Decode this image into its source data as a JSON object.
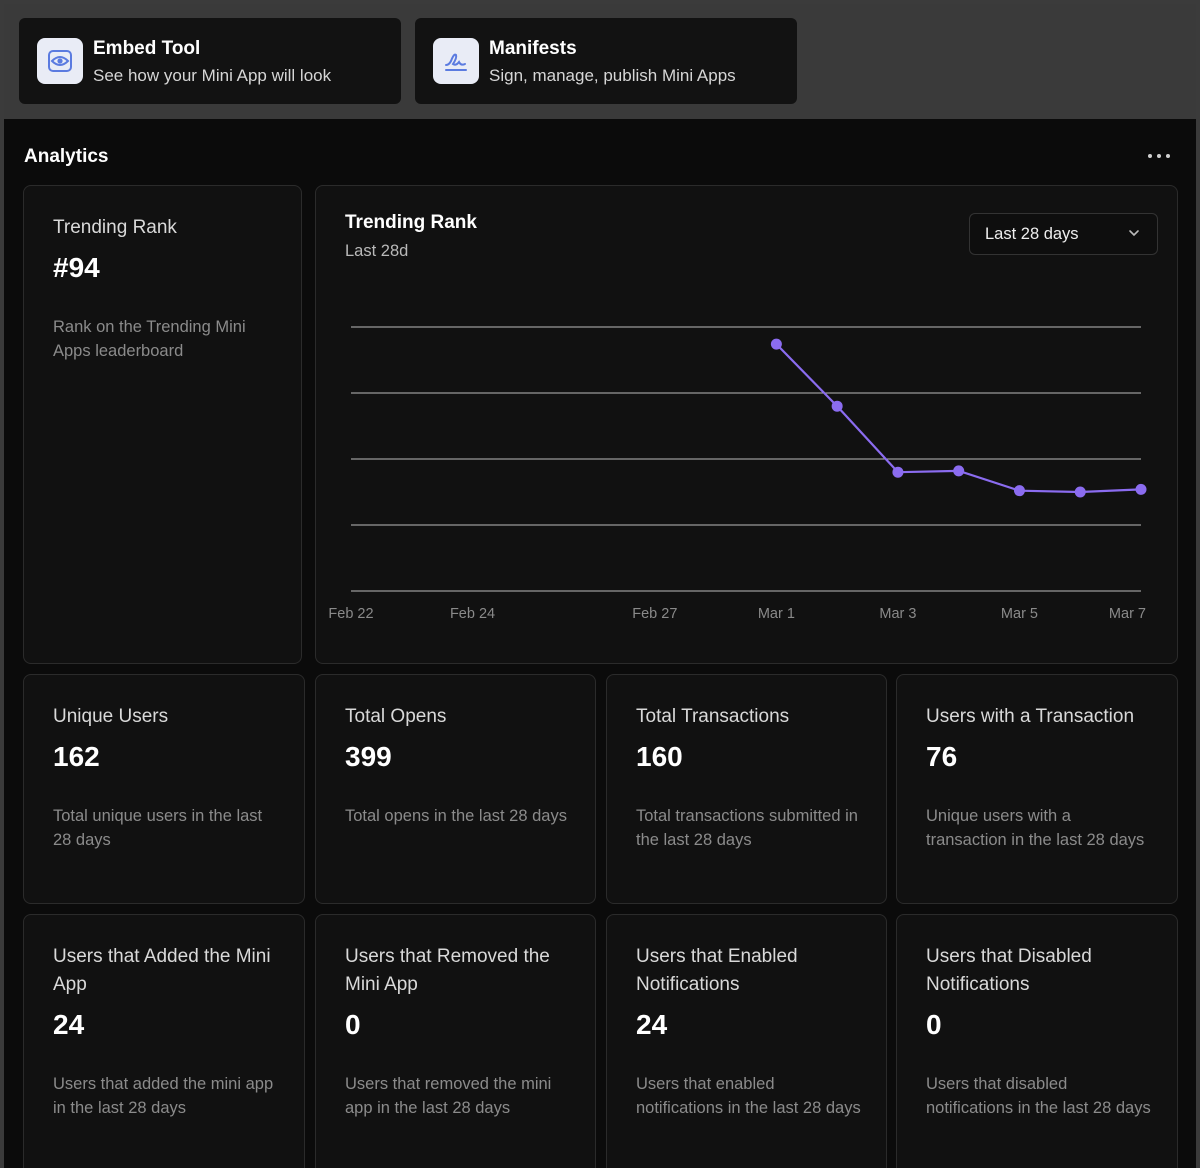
{
  "tools": [
    {
      "title": "Embed Tool",
      "subtitle": "See how your Mini App will look",
      "icon": "eye-icon"
    },
    {
      "title": "Manifests",
      "subtitle": "Sign, manage, publish Mini Apps",
      "icon": "signature-icon"
    }
  ],
  "analytics": {
    "title": "Analytics",
    "rank_card": {
      "label": "Trending Rank",
      "value": "#94",
      "desc": "Rank on the Trending Mini Apps leaderboard"
    },
    "chart_card": {
      "title": "Trending Rank",
      "subtitle": "Last 28d",
      "range_select": "Last 28 days"
    },
    "metrics_row1": [
      {
        "label": "Unique Users",
        "value": "162",
        "desc": "Total unique users in the last 28 days"
      },
      {
        "label": "Total Opens",
        "value": "399",
        "desc": "Total opens in the last 28 days"
      },
      {
        "label": "Total Transactions",
        "value": "160",
        "desc": "Total transactions submitted in the last 28 days"
      },
      {
        "label": "Users with a Transaction",
        "value": "76",
        "desc": "Unique users with a transaction in the last 28 days"
      }
    ],
    "metrics_row2": [
      {
        "label": "Users that Added the Mini App",
        "value": "24",
        "desc": "Users that added the mini app in the last 28 days"
      },
      {
        "label": "Users that Removed the Mini App",
        "value": "0",
        "desc": "Users that removed the mini app in the last 28 days"
      },
      {
        "label": "Users that Enabled Notifications",
        "value": "24",
        "desc": "Users that enabled notifications in the last 28 days"
      },
      {
        "label": "Users that Disabled Notifications",
        "value": "0",
        "desc": "Users that disabled notifications in the last 28 days"
      }
    ]
  },
  "colors": {
    "accent": "#8b6cf0",
    "grid": "#d9d9d9"
  },
  "chart_data": {
    "type": "line",
    "title": "Trending Rank",
    "subtitle": "Last 28d",
    "x_ticks": [
      "Feb 22",
      "Feb 24",
      "Feb 27",
      "Mar 1",
      "Mar 3",
      "Mar 5",
      "Mar 7"
    ],
    "x_tick_days": [
      0,
      2,
      5,
      7,
      9,
      11,
      13
    ],
    "x_range": [
      0,
      13
    ],
    "y_inverted": true,
    "y_range": [
      0,
      200
    ],
    "series": [
      {
        "name": "Trending Rank",
        "x": [
          7,
          8,
          9,
          10,
          11,
          12,
          13
        ],
        "values": [
          13,
          60,
          110,
          109,
          124,
          125,
          123
        ]
      }
    ],
    "grid": true
  }
}
